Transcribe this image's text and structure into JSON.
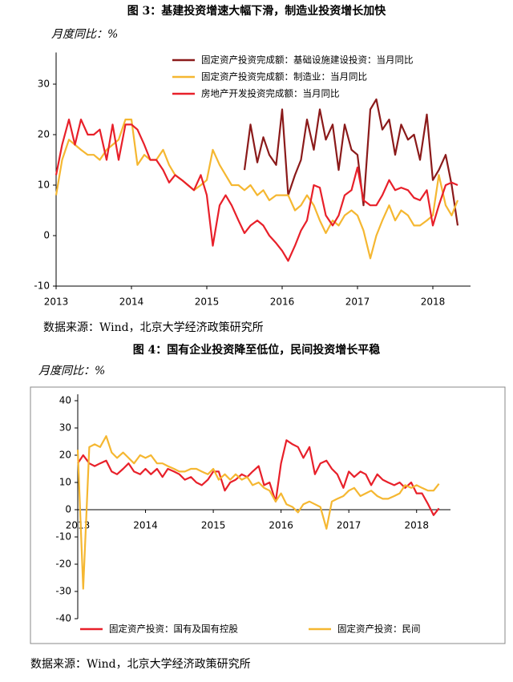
{
  "chart_data": [
    {
      "type": "line",
      "title": "图 3：基建投资增速大幅下滑，制造业投资增长加快",
      "ylabel": "月度同比：%",
      "source": "数据来源：Wind，北京大学经济政策研究所",
      "xlim": [
        2013,
        2018.5
      ],
      "xticks": [
        2013,
        2014,
        2015,
        2016,
        2017,
        2018
      ],
      "ylim": [
        -10,
        35
      ],
      "yticks": [
        -10,
        0,
        10,
        20,
        30
      ],
      "legend": "upper left",
      "x": [
        2013.0,
        2013.08,
        2013.17,
        2013.25,
        2013.33,
        2013.42,
        2013.5,
        2013.58,
        2013.67,
        2013.75,
        2013.83,
        2013.92,
        2014.0,
        2014.08,
        2014.17,
        2014.25,
        2014.33,
        2014.42,
        2014.5,
        2014.58,
        2014.67,
        2014.75,
        2014.83,
        2014.92,
        2015.0,
        2015.08,
        2015.17,
        2015.25,
        2015.33,
        2015.42,
        2015.5,
        2015.58,
        2015.67,
        2015.75,
        2015.83,
        2015.92,
        2016.0,
        2016.08,
        2016.17,
        2016.25,
        2016.33,
        2016.42,
        2016.5,
        2016.58,
        2016.67,
        2016.75,
        2016.83,
        2016.92,
        2017.0,
        2017.08,
        2017.17,
        2017.25,
        2017.33,
        2017.42,
        2017.5,
        2017.58,
        2017.67,
        2017.75,
        2017.83,
        2017.92,
        2018.0,
        2018.08,
        2018.17,
        2018.25,
        2018.33
      ],
      "series": [
        {
          "name": "固定资产投资完成额：基础设施建设投资：当月同比",
          "color": "#8b1a1a",
          "values": [
            null,
            null,
            null,
            null,
            null,
            null,
            null,
            null,
            null,
            null,
            null,
            null,
            null,
            null,
            null,
            null,
            null,
            null,
            null,
            null,
            null,
            null,
            null,
            null,
            null,
            null,
            null,
            null,
            null,
            null,
            13,
            22,
            14.5,
            19.5,
            16,
            14,
            25,
            8,
            12,
            15,
            23,
            17,
            25,
            19,
            22,
            13,
            22,
            17,
            16,
            6,
            25,
            27,
            21,
            23,
            16,
            22,
            19,
            20,
            15,
            24,
            11,
            13,
            16,
            10,
            2
          ]
        },
        {
          "name": "固定资产投资完成额：制造业：当月同比",
          "color": "#f5b731",
          "values": [
            8,
            15,
            19,
            18,
            17,
            16,
            16,
            15,
            17,
            18,
            19,
            23,
            23,
            14,
            16,
            15,
            15,
            17,
            14,
            12,
            11,
            10,
            9,
            10,
            11,
            17,
            14,
            12,
            10,
            10,
            9,
            10,
            8,
            9,
            7,
            8,
            8,
            8,
            5,
            6,
            8,
            6,
            3,
            0.5,
            3,
            2,
            4,
            5,
            4,
            1,
            -4.5,
            0,
            3,
            6,
            3,
            5,
            4,
            2,
            2,
            3,
            4,
            12,
            6,
            4,
            7
          ]
        },
        {
          "name": "房地产开发投资完成额：当月同比",
          "color": "#e8202a",
          "values": [
            12,
            18,
            23,
            18,
            23,
            20,
            20,
            21,
            15,
            22,
            15,
            22,
            22,
            21,
            18,
            15,
            15,
            13,
            10.5,
            12,
            11,
            10,
            9,
            12,
            8,
            -2,
            6,
            8,
            6,
            3,
            0.5,
            2,
            3,
            2,
            0,
            -1.5,
            -3,
            -5,
            -2,
            1,
            3,
            10,
            9.5,
            4,
            2,
            4,
            8,
            9,
            13.5,
            7,
            6,
            6,
            8,
            11,
            9,
            9.5,
            9,
            7.5,
            7,
            9,
            2,
            6,
            10,
            10.5,
            10
          ]
        }
      ]
    },
    {
      "type": "line",
      "title": "图 4：国有企业投资降至低位，民间投资增长平稳",
      "ylabel": "月度同比：%",
      "source": "数据来源：Wind，北京大学经济政策研究所",
      "xlim": [
        2013,
        2018.5
      ],
      "xticks": [
        2013,
        2014,
        2015,
        2016,
        2017,
        2018
      ],
      "ylim": [
        -40,
        40
      ],
      "yticks": [
        -40,
        -30,
        -20,
        -10,
        0,
        10,
        20,
        30,
        40
      ],
      "legend": "lower center",
      "x": [
        2013.0,
        2013.08,
        2013.17,
        2013.25,
        2013.33,
        2013.42,
        2013.5,
        2013.58,
        2013.67,
        2013.75,
        2013.83,
        2013.92,
        2014.0,
        2014.08,
        2014.17,
        2014.25,
        2014.33,
        2014.42,
        2014.5,
        2014.58,
        2014.67,
        2014.75,
        2014.83,
        2014.92,
        2015.0,
        2015.08,
        2015.17,
        2015.25,
        2015.33,
        2015.42,
        2015.5,
        2015.58,
        2015.67,
        2015.75,
        2015.83,
        2015.92,
        2016.0,
        2016.08,
        2016.17,
        2016.25,
        2016.33,
        2016.42,
        2016.5,
        2016.58,
        2016.67,
        2016.75,
        2016.83,
        2016.92,
        2017.0,
        2017.08,
        2017.17,
        2017.25,
        2017.33,
        2017.42,
        2017.5,
        2017.58,
        2017.67,
        2017.75,
        2017.83,
        2017.92,
        2018.0,
        2018.08,
        2018.17,
        2018.25,
        2018.33
      ],
      "series": [
        {
          "name": "固定资产投资：国有及国有控股",
          "color": "#e8202a",
          "values": [
            17,
            20,
            17,
            16,
            17,
            18,
            14,
            13,
            15,
            17,
            14,
            13,
            15,
            13,
            15,
            12,
            15,
            14,
            13,
            11,
            12,
            10,
            9,
            11,
            14,
            14,
            7,
            10,
            11,
            13,
            12,
            14,
            16,
            9,
            10,
            3,
            17,
            25.5,
            24,
            23,
            19,
            23,
            13,
            17,
            18,
            15,
            13,
            8,
            14,
            12,
            14,
            13,
            9,
            13,
            11,
            10,
            9,
            10,
            8,
            10,
            6,
            6,
            2,
            -2,
            0.5
          ]
        },
        {
          "name": "固定资产投资：民间",
          "color": "#f5b731",
          "values": [
            22,
            -29,
            23,
            24,
            23,
            27,
            21,
            19,
            21,
            19,
            17,
            20,
            19,
            20,
            17,
            17,
            16,
            15,
            14,
            14,
            15,
            15,
            14,
            13,
            15,
            11,
            13,
            11,
            13,
            11,
            12,
            9,
            10,
            8,
            7,
            3,
            6,
            2,
            1,
            -1,
            2,
            3,
            2,
            1,
            -7,
            3,
            4,
            5,
            7,
            8,
            5,
            6,
            7,
            5,
            4,
            4,
            5,
            6,
            9,
            8,
            9,
            8,
            7,
            7,
            9.5
          ]
        }
      ]
    }
  ]
}
